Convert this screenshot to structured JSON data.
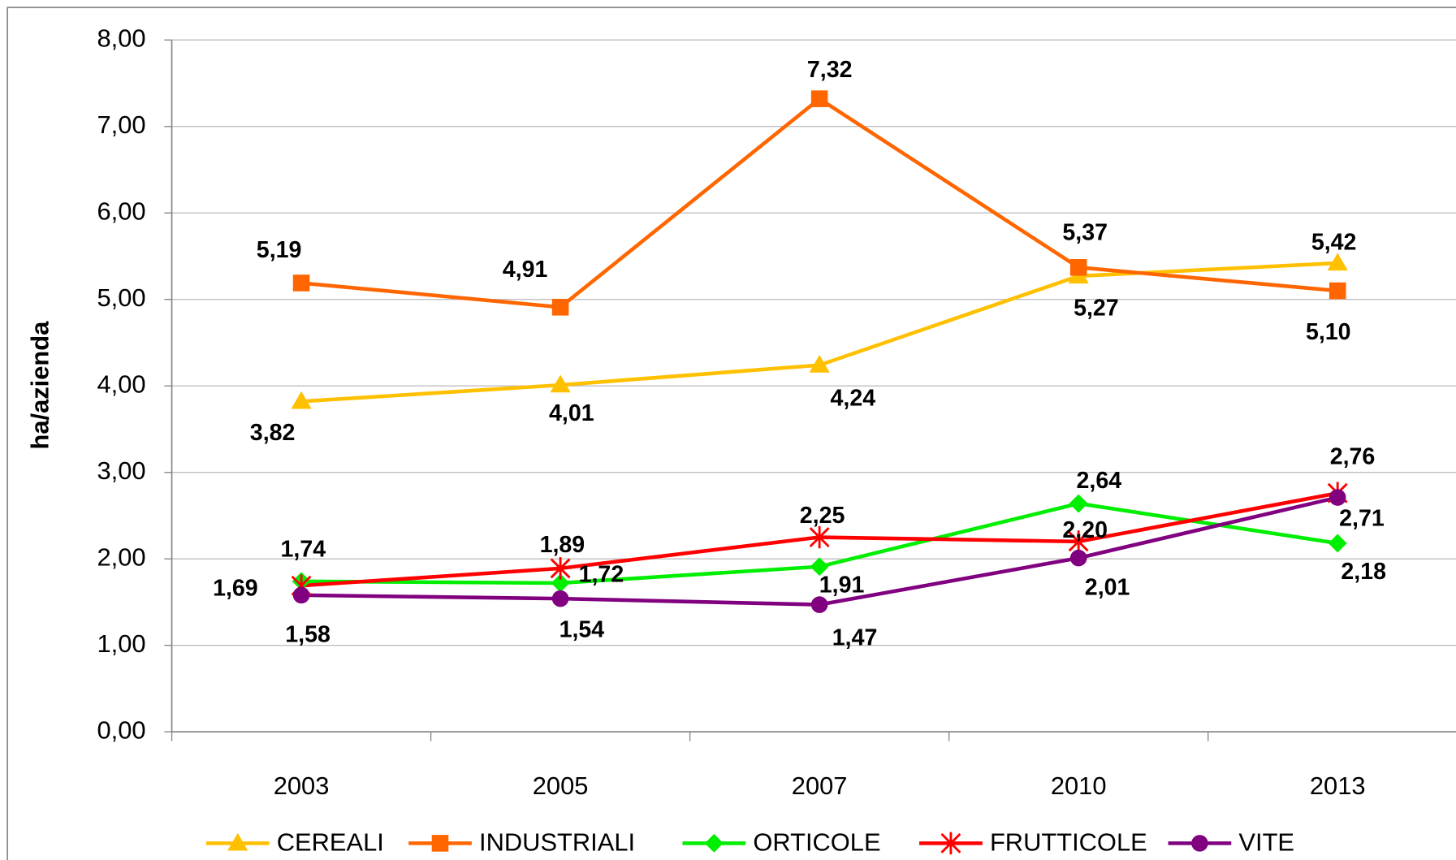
{
  "chart_data": {
    "type": "line",
    "y_label": "ha/azienda",
    "categories": [
      "2003",
      "2005",
      "2007",
      "2010",
      "2013"
    ],
    "ylim": [
      0,
      8
    ],
    "yticks": [
      {
        "value": 0,
        "label": "0,00"
      },
      {
        "value": 1,
        "label": "1,00"
      },
      {
        "value": 2,
        "label": "2,00"
      },
      {
        "value": 3,
        "label": "3,00"
      },
      {
        "value": 4,
        "label": "4,00"
      },
      {
        "value": 5,
        "label": "5,00"
      },
      {
        "value": 6,
        "label": "6,00"
      },
      {
        "value": 7,
        "label": "7,00"
      },
      {
        "value": 8,
        "label": "8,00"
      }
    ],
    "grid": true,
    "legend": "bottom",
    "series": [
      {
        "name": "CEREALI",
        "color": "#ffc000",
        "marker": "triangle",
        "values": [
          3.82,
          4.01,
          4.24,
          5.27,
          5.42
        ],
        "value_labels": [
          "3,82",
          "4,01",
          "4,24",
          "5,27",
          "5,42"
        ]
      },
      {
        "name": "INDUSTRIALI",
        "color": "#ff6600",
        "marker": "square",
        "values": [
          5.19,
          4.91,
          7.32,
          5.37,
          5.1
        ],
        "value_labels": [
          "5,19",
          "4,91",
          "7,32",
          "5,37",
          "5,10"
        ]
      },
      {
        "name": "ORTICOLE",
        "color": "#00ee00",
        "marker": "diamond",
        "values": [
          1.74,
          1.72,
          1.91,
          2.64,
          2.18
        ],
        "value_labels": [
          "1,74",
          "1,72",
          "1,91",
          "2,64",
          "2,18"
        ]
      },
      {
        "name": "FRUTTICOLE",
        "color": "#ff0000",
        "marker": "star",
        "values": [
          1.69,
          1.89,
          2.25,
          2.2,
          2.76
        ],
        "value_labels": [
          "1,69",
          "1,89",
          "2,25",
          "2,20",
          "2,76"
        ]
      },
      {
        "name": "VITE",
        "color": "#800080",
        "marker": "circle",
        "values": [
          1.58,
          1.54,
          1.47,
          2.01,
          2.71
        ],
        "value_labels": [
          "1,58",
          "1,54",
          "1,47",
          "2,01",
          "2,71"
        ]
      }
    ]
  }
}
